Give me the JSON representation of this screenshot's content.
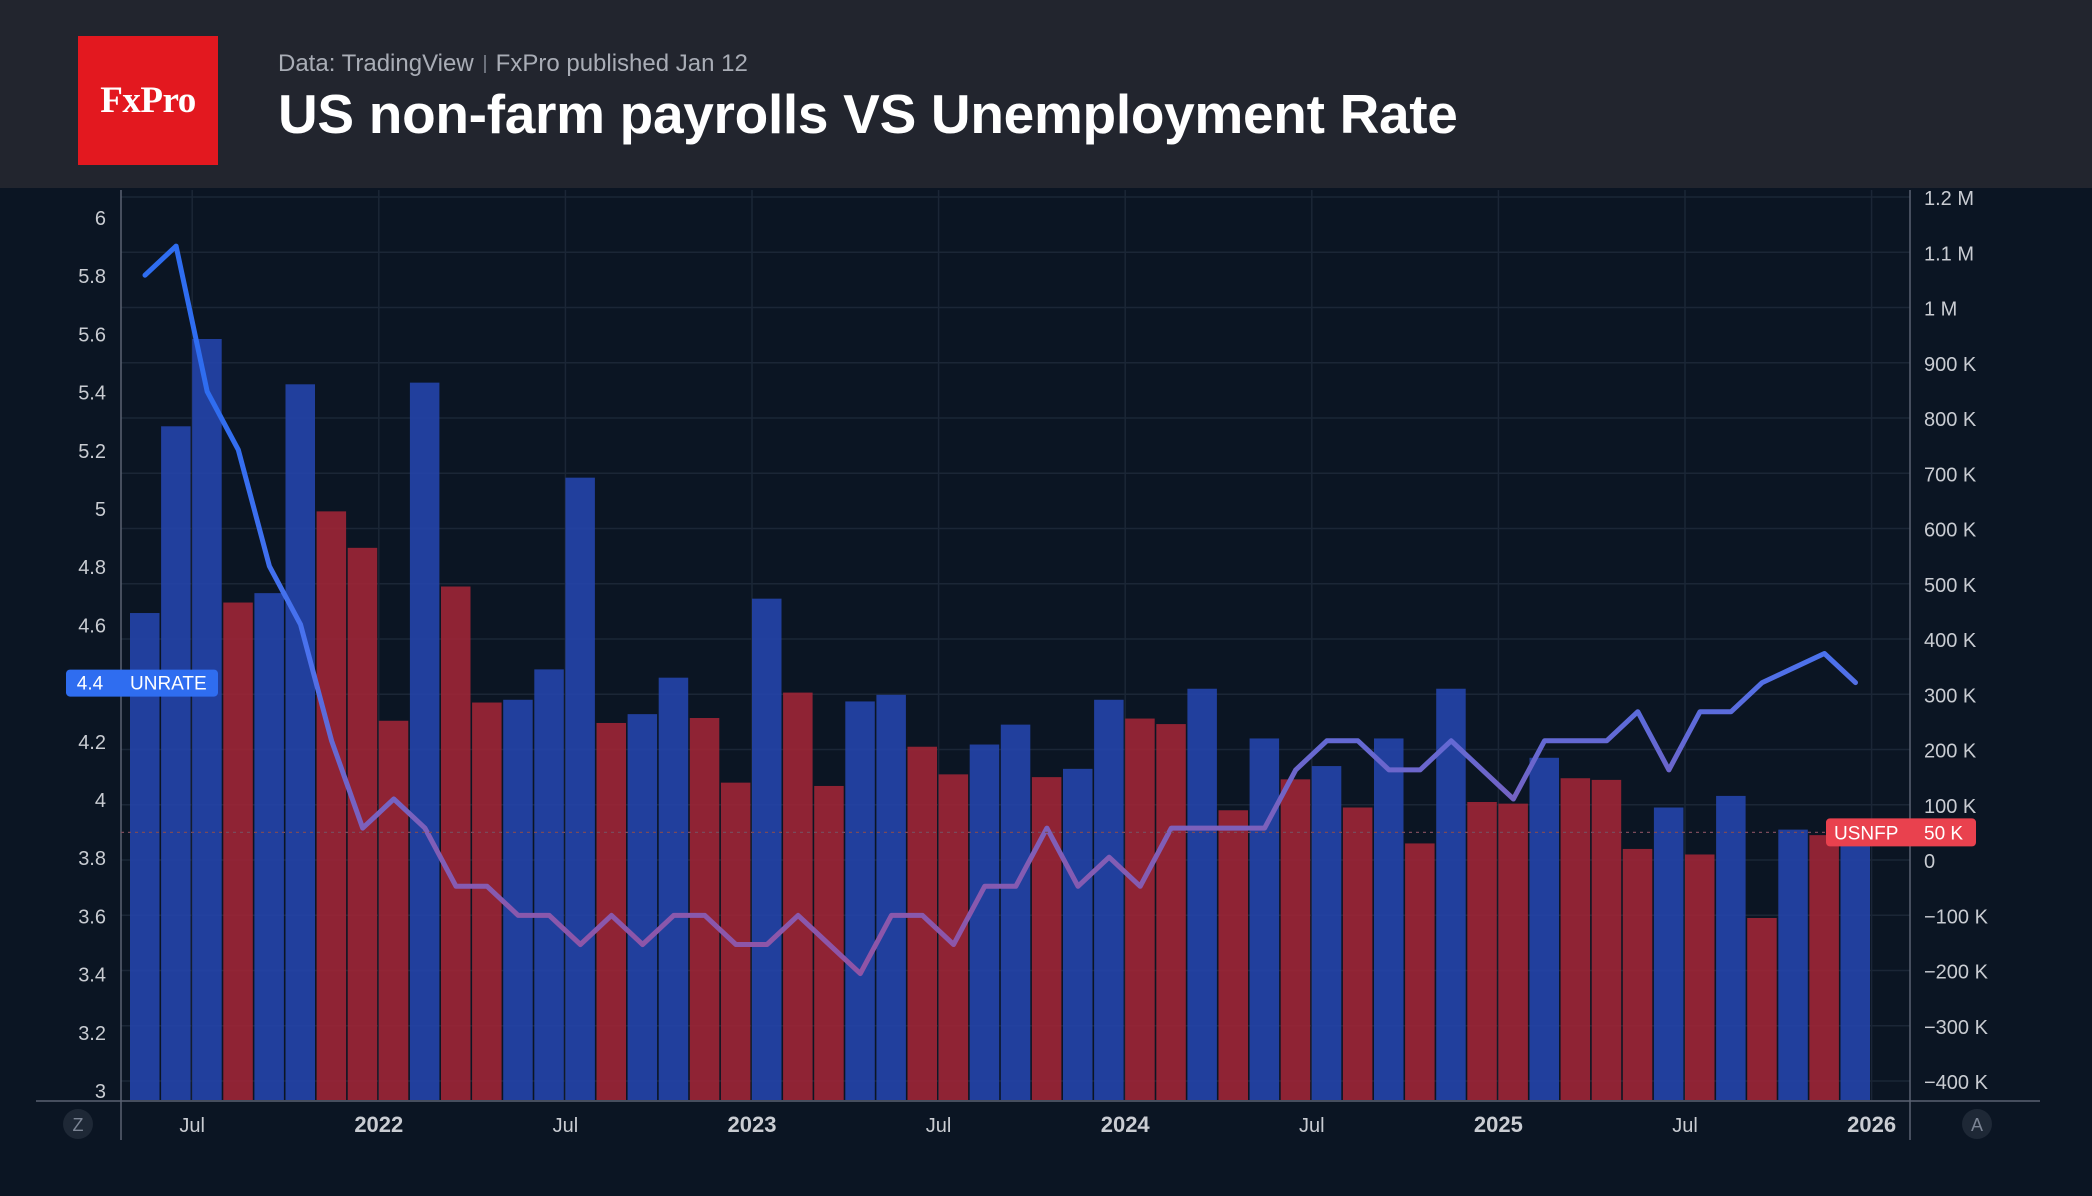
{
  "header": {
    "logo_text": "FxPro",
    "source": "Data: TradingView",
    "published": "FxPro published Jan 12",
    "title": "US non-farm payrolls VS Unemployment Rate"
  },
  "colors": {
    "header_bg": "#22252e",
    "plot_bg": "#0b1523",
    "brand_red": "#e3181f",
    "rate_line": "#2f6df0",
    "bar_blue": "#2443a8",
    "bar_red": "#9b2536",
    "unrate_badge": "#2f6df0",
    "usnfp_badge": "#e9414e"
  },
  "chart_data": {
    "type": "bar+line",
    "title": "US non-farm payrolls VS Unemployment Rate",
    "left_axis": {
      "ylim": [
        3,
        6.1
      ],
      "ticks": [
        "6",
        "5.8",
        "5.6",
        "5.4",
        "5.2",
        "5",
        "4.8",
        "4.6",
        "4.4",
        "4.2",
        "4",
        "3.8",
        "3.6",
        "3.4",
        "3.2",
        "3"
      ]
    },
    "right_axis": {
      "ylim": [
        -420,
        1220
      ],
      "unit": "K",
      "ticks": [
        "1.2 M",
        "1.1 M",
        "1 M",
        "900 K",
        "800 K",
        "700 K",
        "600 K",
        "500 K",
        "400 K",
        "300 K",
        "200 K",
        "100 K",
        "0",
        "−100 K",
        "−200 K",
        "−300 K",
        "−400 K"
      ]
    },
    "x_axis": {
      "range": [
        "2021-05",
        "2026-02"
      ],
      "ticks": [
        {
          "label": "Jul",
          "date": "2021-07",
          "bold": false
        },
        {
          "label": "2022",
          "date": "2022-01",
          "bold": true
        },
        {
          "label": "Jul",
          "date": "2022-07",
          "bold": false
        },
        {
          "label": "2023",
          "date": "2023-01",
          "bold": true
        },
        {
          "label": "Jul",
          "date": "2023-07",
          "bold": false
        },
        {
          "label": "2024",
          "date": "2024-01",
          "bold": true
        },
        {
          "label": "Jul",
          "date": "2024-07",
          "bold": false
        },
        {
          "label": "2025",
          "date": "2025-01",
          "bold": true
        },
        {
          "label": "Jul",
          "date": "2025-07",
          "bold": false
        },
        {
          "label": "2026",
          "date": "2026-01",
          "bold": true
        }
      ]
    },
    "grid": true,
    "series": [
      {
        "name": "USNFP",
        "type": "bar",
        "axis": "right",
        "dates": [
          "2021-05",
          "2021-06",
          "2021-07",
          "2021-08",
          "2021-09",
          "2021-10",
          "2021-11",
          "2021-12",
          "2022-01",
          "2022-02",
          "2022-03",
          "2022-04",
          "2022-05",
          "2022-06",
          "2022-07",
          "2022-08",
          "2022-09",
          "2022-10",
          "2022-11",
          "2022-12",
          "2023-01",
          "2023-02",
          "2023-03",
          "2023-04",
          "2023-05",
          "2023-06",
          "2023-07",
          "2023-08",
          "2023-09",
          "2023-10",
          "2023-11",
          "2023-12",
          "2024-01",
          "2024-02",
          "2024-03",
          "2024-04",
          "2024-05",
          "2024-06",
          "2024-07",
          "2024-08",
          "2024-09",
          "2024-10",
          "2024-11",
          "2024-12",
          "2025-01",
          "2025-02",
          "2025-03",
          "2025-04",
          "2025-05",
          "2025-06",
          "2025-07",
          "2025-08",
          "2025-09",
          "2025-10",
          "2025-11",
          "2025-12"
        ],
        "values": [
          447,
          785,
          943,
          466,
          483,
          861,
          631,
          565,
          252,
          864,
          495,
          285,
          290,
          345,
          692,
          248,
          264,
          330,
          257,
          140,
          473,
          303,
          134,
          287,
          299,
          205,
          155,
          209,
          245,
          150,
          165,
          290,
          256,
          246,
          310,
          90,
          220,
          146,
          170,
          95,
          220,
          30,
          310,
          105,
          102,
          185,
          148,
          145,
          20,
          95,
          10,
          116,
          -105,
          55,
          45,
          50
        ],
        "colors_by_direction": {
          "up": "blue",
          "down": "red"
        }
      },
      {
        "name": "UNRATE",
        "type": "line",
        "axis": "left",
        "dates": [
          "2021-05",
          "2021-06",
          "2021-07",
          "2021-08",
          "2021-09",
          "2021-10",
          "2021-11",
          "2021-12",
          "2022-01",
          "2022-02",
          "2022-03",
          "2022-04",
          "2022-05",
          "2022-06",
          "2022-07",
          "2022-08",
          "2022-09",
          "2022-10",
          "2022-11",
          "2022-12",
          "2023-01",
          "2023-02",
          "2023-03",
          "2023-04",
          "2023-05",
          "2023-06",
          "2023-07",
          "2023-08",
          "2023-09",
          "2023-10",
          "2023-11",
          "2023-12",
          "2024-01",
          "2024-02",
          "2024-03",
          "2024-04",
          "2024-05",
          "2024-06",
          "2024-07",
          "2024-08",
          "2024-09",
          "2024-10",
          "2024-11",
          "2024-12",
          "2025-01",
          "2025-02",
          "2025-03",
          "2025-04",
          "2025-05",
          "2025-06",
          "2025-07",
          "2025-08",
          "2025-09",
          "2025-10",
          "2025-11",
          "2025-12"
        ],
        "values": [
          5.8,
          5.9,
          5.4,
          5.2,
          4.8,
          4.6,
          4.2,
          3.9,
          4.0,
          3.9,
          3.7,
          3.7,
          3.6,
          3.6,
          3.5,
          3.6,
          3.5,
          3.6,
          3.6,
          3.5,
          3.5,
          3.6,
          3.5,
          3.4,
          3.6,
          3.6,
          3.5,
          3.7,
          3.7,
          3.9,
          3.7,
          3.8,
          3.7,
          3.9,
          3.9,
          3.9,
          3.9,
          4.1,
          4.2,
          4.2,
          4.1,
          4.1,
          4.2,
          4.1,
          4.0,
          4.2,
          4.2,
          4.2,
          4.3,
          4.1,
          4.3,
          4.3,
          4.4,
          4.45,
          4.5,
          4.4
        ]
      }
    ],
    "last_labels": {
      "unrate": {
        "value": "4.4",
        "name": "UNRATE"
      },
      "usnfp": {
        "value": "50 K",
        "name": "USNFP"
      }
    },
    "corner_buttons": {
      "left": "Z",
      "right": "A"
    }
  }
}
